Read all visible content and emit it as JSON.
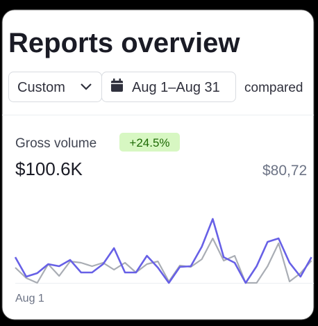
{
  "header": {
    "title": "Reports overview"
  },
  "filters": {
    "range": "Custom",
    "dates": "Aug 1–Aug 31",
    "compare": "compared"
  },
  "chart_data": {
    "type": "line",
    "title": "Gross volume",
    "change": "+24.5%",
    "value": "$100.6K",
    "comparison_value": "$80,72",
    "categories": [
      "Aug 1",
      null,
      null,
      null,
      null,
      null,
      null,
      null,
      null,
      null,
      null,
      null,
      null,
      null,
      null,
      null,
      null,
      null,
      null,
      null,
      null,
      null,
      null,
      null,
      null,
      null,
      null,
      null
    ],
    "series": [
      {
        "color": "#6760e6",
        "values": [
          37,
          9,
          14,
          27,
          24,
          33,
          15,
          15,
          27,
          50,
          15,
          15,
          39,
          22,
          0,
          23,
          24,
          52,
          92,
          37,
          29,
          0,
          24,
          59,
          64,
          29,
          9,
          37
        ]
      },
      {
        "color": "#a9adb4",
        "values": [
          22,
          7,
          0,
          27,
          10,
          31,
          29,
          24,
          29,
          19,
          29,
          15,
          27,
          31,
          2,
          25,
          23,
          34,
          64,
          32,
          39,
          0,
          0,
          24,
          57,
          2,
          14,
          32
        ]
      }
    ],
    "ylim": [
      0,
      100
    ]
  }
}
